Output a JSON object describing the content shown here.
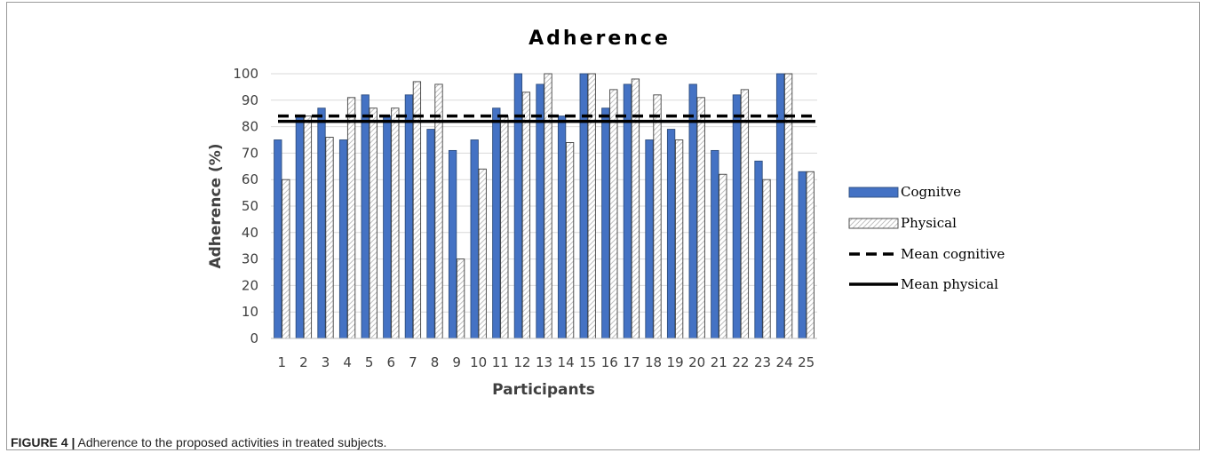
{
  "chart_data": {
    "type": "bar",
    "title": "Adherence",
    "xlabel": "Participants",
    "ylabel": "Adherence (%)",
    "ylim": [
      0,
      100
    ],
    "yticks": [
      0,
      10,
      20,
      30,
      40,
      50,
      60,
      70,
      80,
      90,
      100
    ],
    "categories": [
      "1",
      "2",
      "3",
      "4",
      "5",
      "6",
      "7",
      "8",
      "9",
      "10",
      "11",
      "12",
      "13",
      "14",
      "15",
      "16",
      "17",
      "18",
      "19",
      "20",
      "21",
      "22",
      "23",
      "24",
      "25"
    ],
    "series": [
      {
        "name": "Cognitve",
        "color": "#4472c4",
        "pattern": "solid",
        "values": [
          75,
          84,
          87,
          75,
          92,
          84,
          92,
          79,
          71,
          75,
          87,
          100,
          96,
          84,
          100,
          87,
          96,
          75,
          79,
          96,
          71,
          92,
          67,
          100,
          63
        ]
      },
      {
        "name": "Physical",
        "color": "#ffffff",
        "pattern": "diagonal-hatch",
        "values": [
          60,
          84,
          76,
          91,
          87,
          87,
          97,
          96,
          30,
          64,
          84,
          93,
          100,
          74,
          100,
          94,
          98,
          92,
          75,
          91,
          62,
          94,
          60,
          100,
          63
        ]
      }
    ],
    "reference_lines": [
      {
        "name": "Mean cognitive",
        "value": 84,
        "style": "dashed",
        "color": "#000000"
      },
      {
        "name": "Mean physical",
        "value": 82,
        "style": "solid",
        "color": "#000000"
      }
    ],
    "grid": true,
    "legend": "right"
  },
  "caption": {
    "label": "FIGURE 4 |",
    "text": " Adherence to the proposed activities in treated subjects."
  }
}
